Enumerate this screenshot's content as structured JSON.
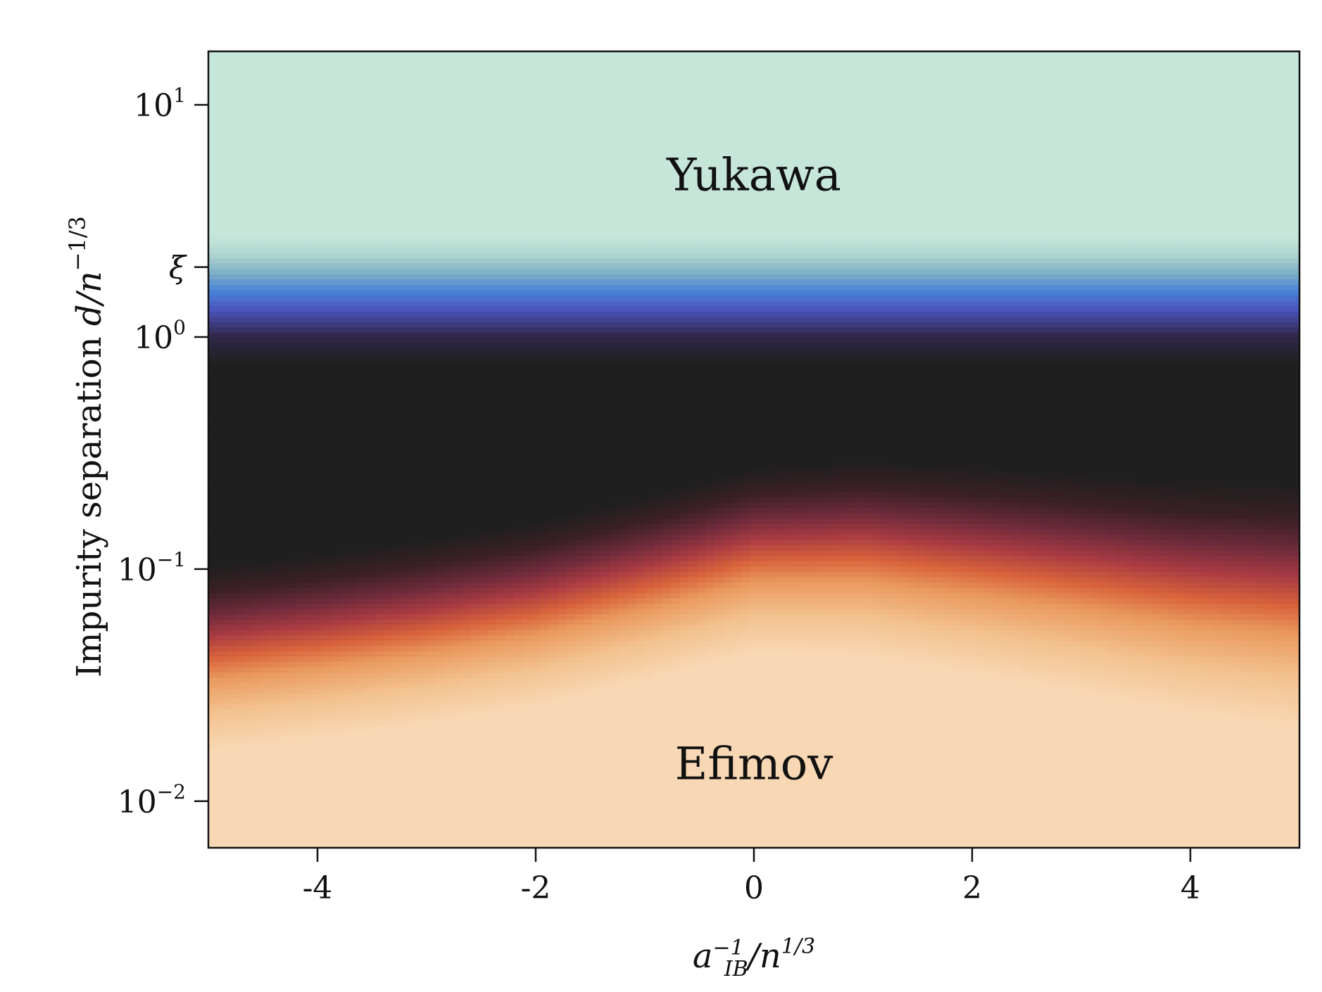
{
  "chart_data": {
    "type": "heatmap",
    "title": "",
    "xlabel": "a_IB^-1 / n^1/3",
    "ylabel": "Impurity separation d/n^-1/3",
    "xlim": [
      -5,
      5
    ],
    "ylim": [
      0.0063,
      17
    ],
    "y_scale": "log",
    "x_ticks": [
      {
        "value": -4,
        "label": "-4"
      },
      {
        "value": -2,
        "label": "-2"
      },
      {
        "value": 0,
        "label": "0"
      },
      {
        "value": 2,
        "label": "2"
      },
      {
        "value": 4,
        "label": "4"
      }
    ],
    "y_ticks": [
      {
        "value": 0.01,
        "base": "10",
        "exp": "−2"
      },
      {
        "value": 0.1,
        "base": "10",
        "exp": "−1"
      },
      {
        "value": 1,
        "base": "10",
        "exp": "0"
      },
      {
        "value": 10,
        "base": "10",
        "exp": "1"
      }
    ],
    "xi_tick": {
      "value": 2,
      "label": "ξ"
    },
    "annotations": [
      {
        "text": "Yukawa",
        "x": 0,
        "y": 5
      },
      {
        "text": "Efimov",
        "x": 0,
        "y": 0.0145
      }
    ],
    "regions": {
      "efimov_color": "#f7d5b0",
      "yukawa_color": "#c6e6da",
      "intermediate_color": "#1f1f1f"
    },
    "boundary_efimov_upper": {
      "x": [
        -5,
        -4,
        -3,
        -2,
        -1,
        0,
        1,
        2,
        3,
        4,
        5
      ],
      "y": [
        0.04,
        0.045,
        0.052,
        0.062,
        0.08,
        0.105,
        0.11,
        0.1,
        0.09,
        0.08,
        0.075
      ]
    },
    "boundary_yukawa_lower": {
      "x": [
        -5,
        5
      ],
      "y": [
        1.0,
        1.0
      ]
    },
    "grid": false,
    "legend": "none"
  }
}
